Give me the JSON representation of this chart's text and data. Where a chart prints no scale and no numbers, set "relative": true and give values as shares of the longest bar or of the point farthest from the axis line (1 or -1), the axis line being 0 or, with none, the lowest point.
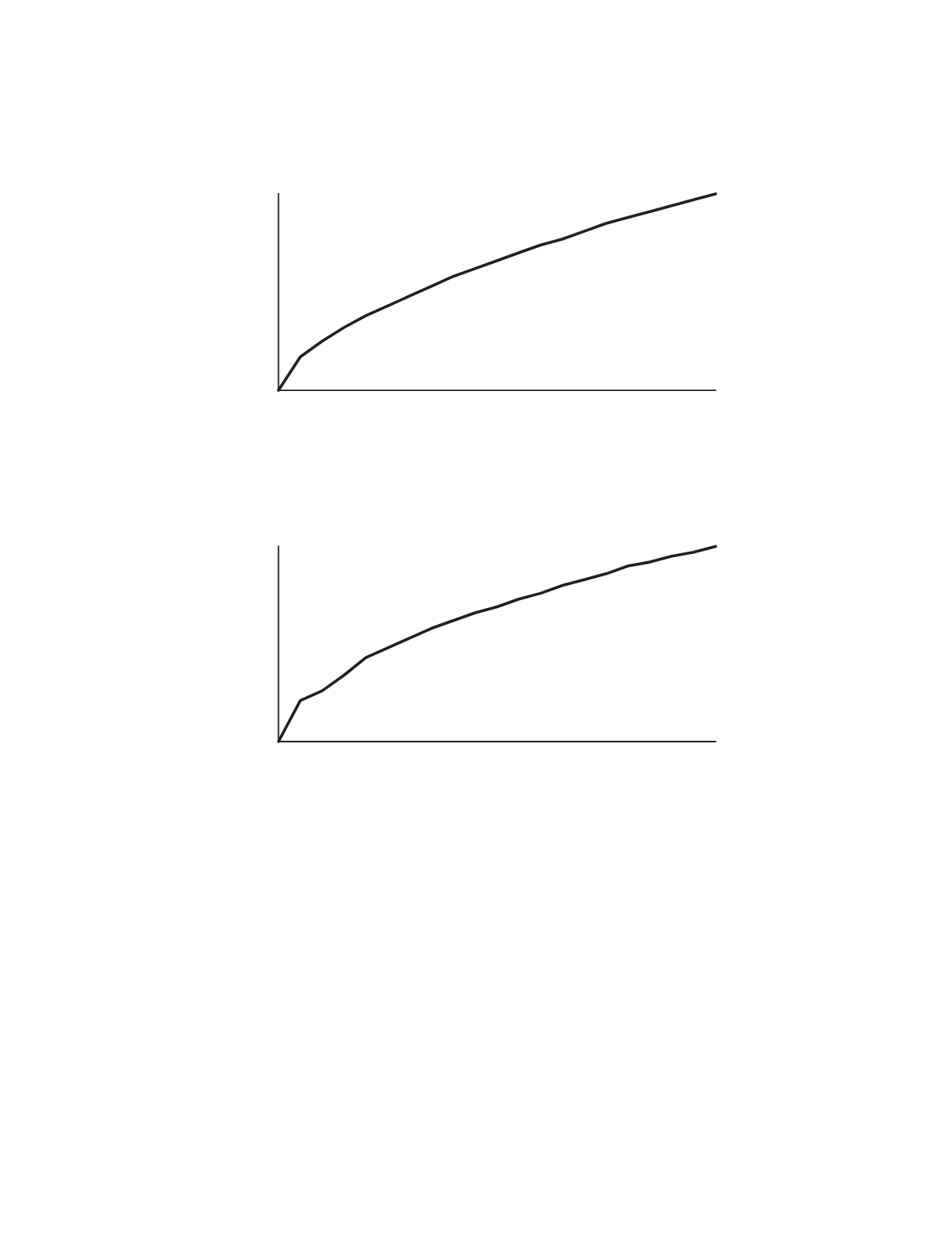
{
  "chart_data": [
    {
      "type": "line",
      "relative": true,
      "categories": [
        null,
        null,
        null,
        null,
        null,
        null,
        null,
        null,
        null,
        null,
        null,
        null,
        null,
        null,
        null,
        null,
        null,
        null,
        null,
        null,
        null
      ],
      "series": [
        {
          "color": "#231f20",
          "values": [
            0,
            0.17,
            0.25,
            0.32,
            0.38,
            0.43,
            0.48,
            0.53,
            0.58,
            0.62,
            0.66,
            0.7,
            0.74,
            0.77,
            0.81,
            0.85,
            0.88,
            0.91,
            0.94,
            0.97,
            1.0
          ]
        }
      ]
    },
    {
      "type": "line",
      "relative": true,
      "categories": [
        null,
        null,
        null,
        null,
        null,
        null,
        null,
        null,
        null,
        null,
        null,
        null,
        null,
        null,
        null,
        null,
        null,
        null,
        null,
        null,
        null
      ],
      "series": [
        {
          "color": "#231f20",
          "values": [
            0,
            0.21,
            0.26,
            0.34,
            0.43,
            0.48,
            0.53,
            0.58,
            0.62,
            0.66,
            0.69,
            0.73,
            0.76,
            0.8,
            0.83,
            0.86,
            0.9,
            0.92,
            0.95,
            0.97,
            1.0
          ]
        }
      ]
    }
  ]
}
